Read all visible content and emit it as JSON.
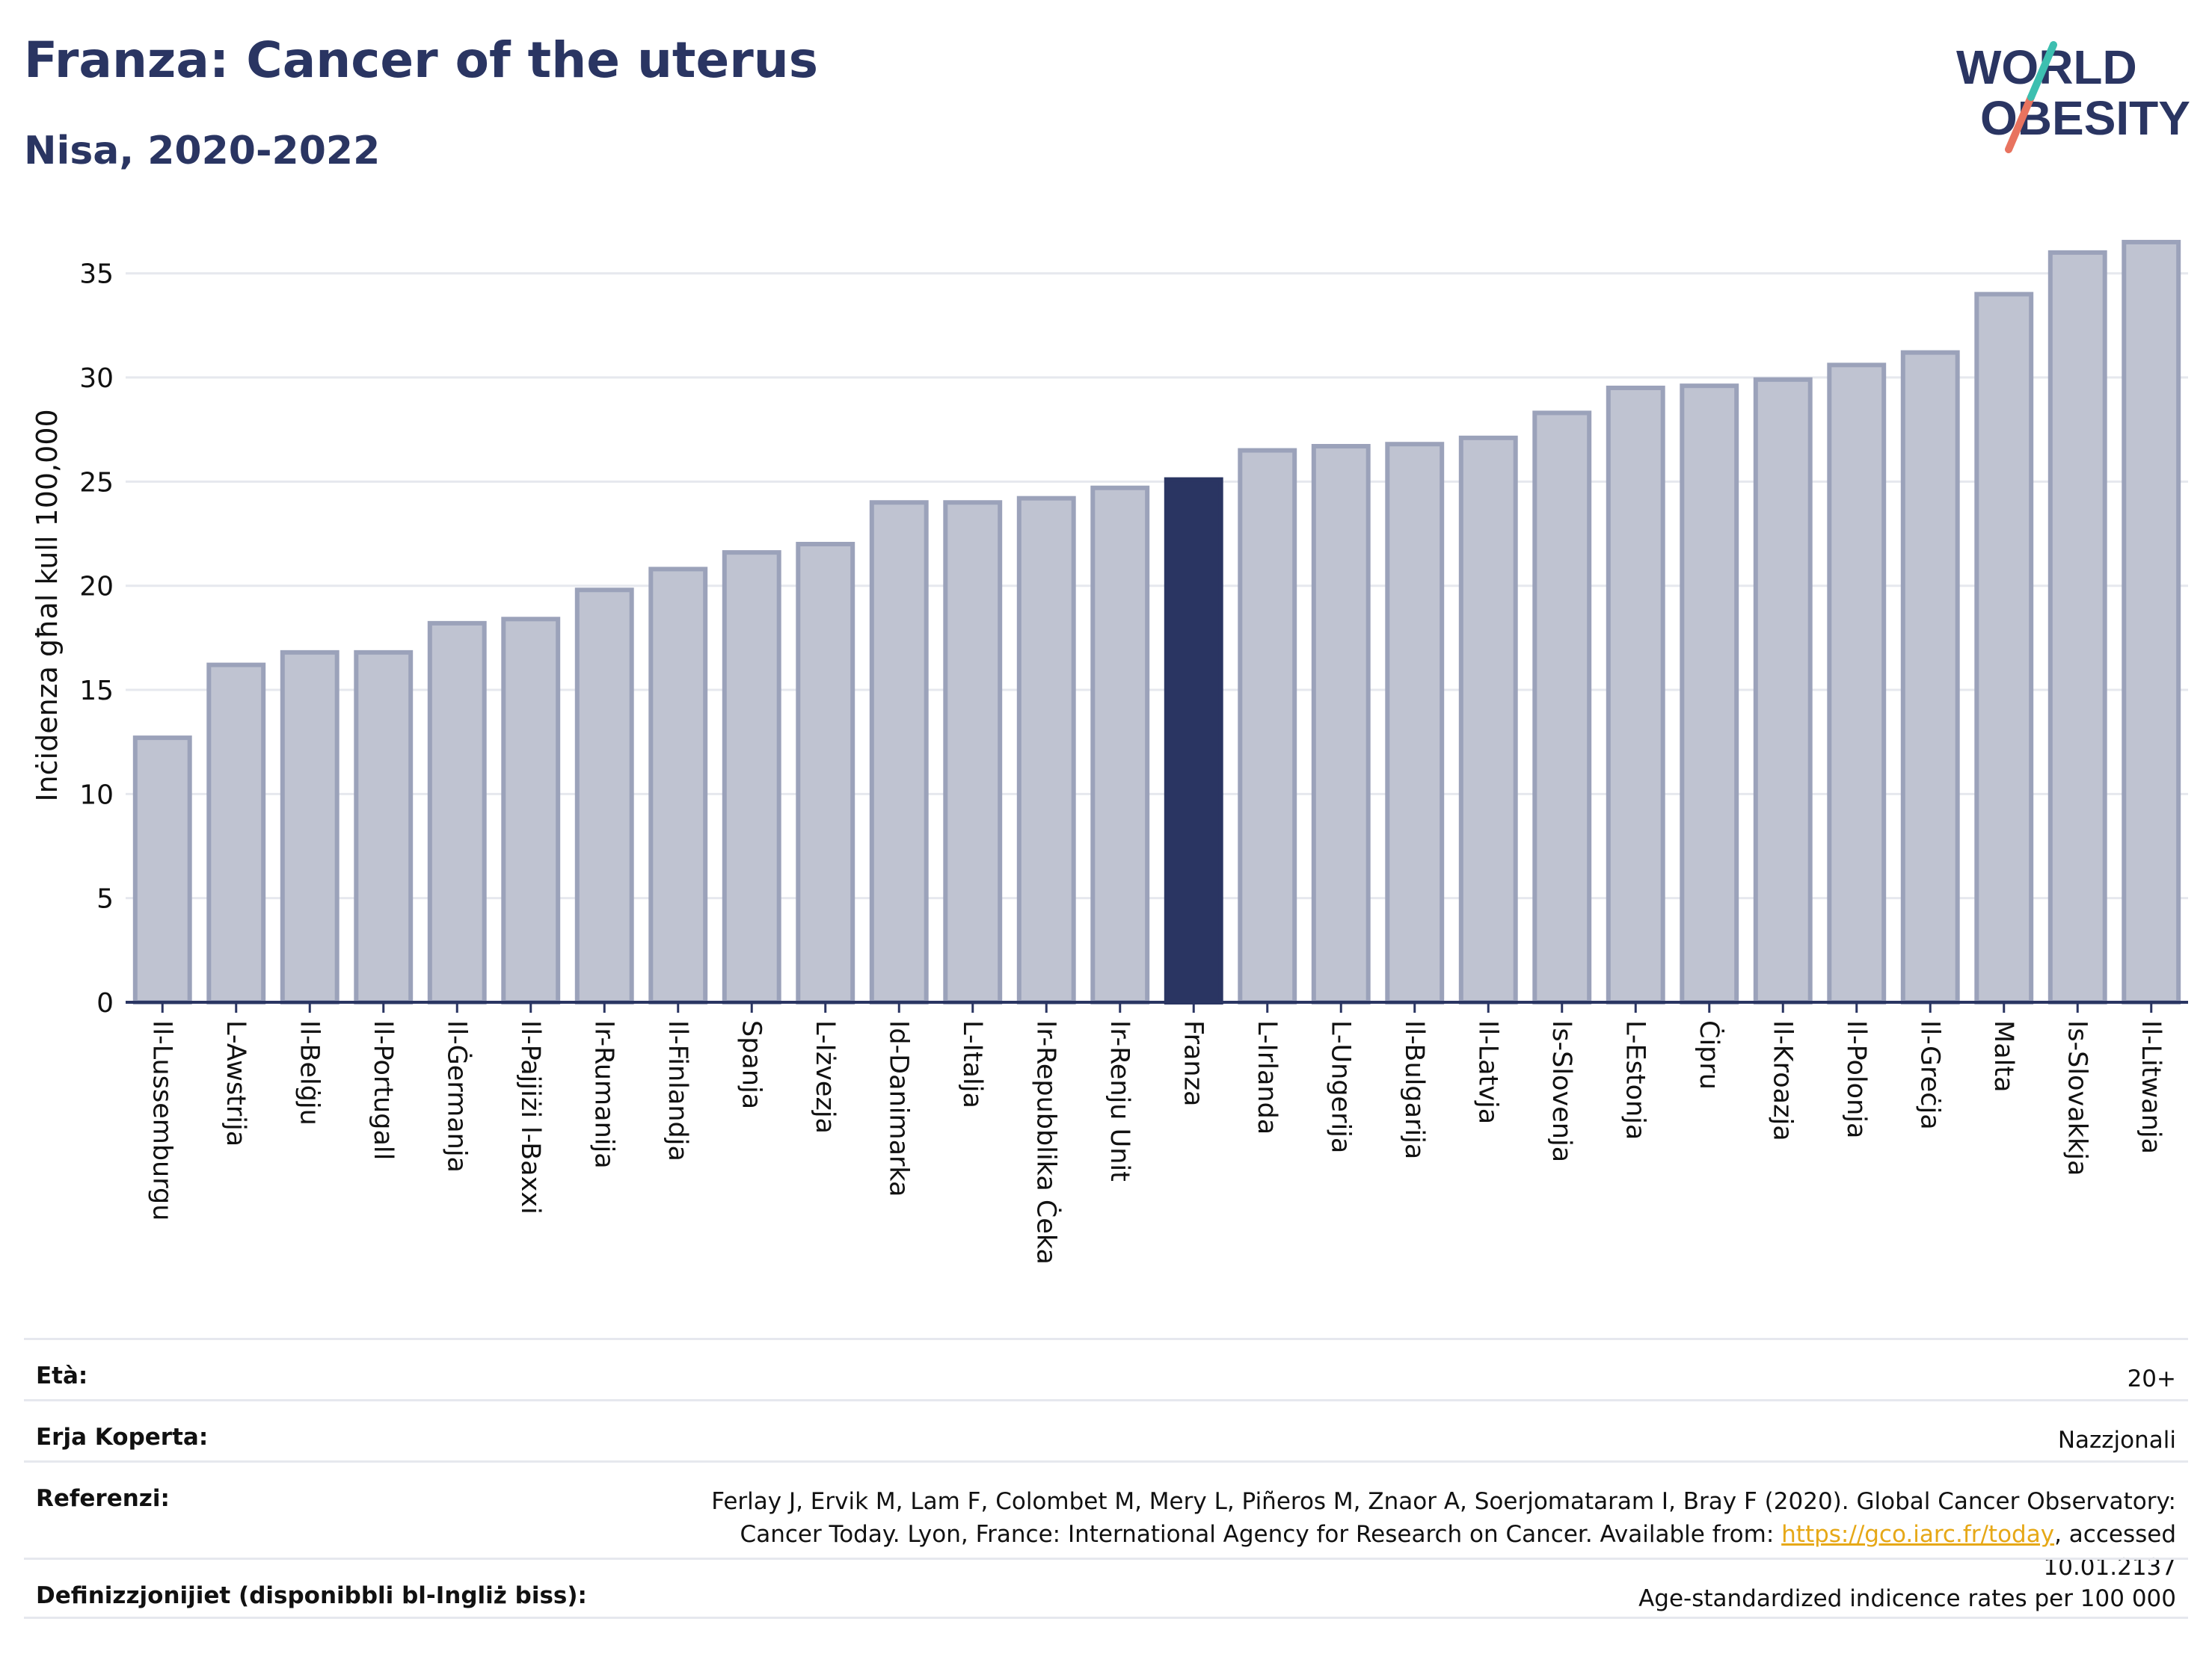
{
  "header": {
    "title": "Franza: Cancer of the uterus",
    "subtitle": "Nisa, 2020-2022"
  },
  "logo": {
    "line1": "WORLD",
    "line2": "OBESITY"
  },
  "colors": {
    "bar": "#bfc3d1",
    "bar_border": "#9ba2ba",
    "highlight": "#2a3562",
    "grid": "#e6e8ee",
    "axis": "#2a3562"
  },
  "chart_data": {
    "type": "bar",
    "ylabel": "Inċidenza għal kull 100,000",
    "ylim": [
      0,
      37
    ],
    "yticks": [
      0,
      5,
      10,
      15,
      20,
      25,
      30,
      35
    ],
    "grid": true,
    "highlight": "Franza",
    "categories": [
      "Il-Lussemburgu",
      "L-Awstrija",
      "Il-Belġju",
      "Il-Portugall",
      "Il-Ġermanja",
      "Il-Pajjiżi l-Baxxi",
      "Ir-Rumanija",
      "Il-Finlandja",
      "Spanja",
      "L-Iżvezja",
      "Id-Danimarka",
      "L-Italja",
      "Ir-Repubblika Ċeka",
      "Ir-Renju Unit",
      "Franza",
      "L-Irlanda",
      "L-Ungerija",
      "Il-Bulgarija",
      "Il-Latvja",
      "Is-Slovenja",
      "L-Estonja",
      "Ċipru",
      "Il-Kroazja",
      "Il-Polonja",
      "Il-Greċja",
      "Malta",
      "Is-Slovakkja",
      "Il-Litwanja"
    ],
    "values": [
      12.7,
      16.2,
      16.8,
      16.8,
      18.2,
      18.4,
      19.8,
      20.8,
      21.6,
      22.0,
      24.0,
      24.0,
      24.2,
      24.7,
      25.1,
      26.5,
      26.7,
      26.8,
      27.1,
      28.3,
      29.5,
      29.6,
      29.9,
      30.6,
      31.2,
      34.0,
      36.0,
      36.5
    ]
  },
  "info": {
    "age_label": "Età:",
    "age_value": "20+",
    "area_label": "Erja Koperta:",
    "area_value": "Nazzjonali",
    "ref_label": "Referenzi:",
    "ref_text_1": "Ferlay J, Ervik M, Lam F, Colombet M, Mery L, Piñeros M, Znaor A, Soerjomataram I, Bray F (2020). Global Cancer Observatory: Cancer Today. Lyon, France: International Agency for Research on Cancer. Available from: ",
    "ref_link": "https://gco.iarc.fr/today",
    "ref_text_2": ", accessed 10.01.2137",
    "def_label": "Definizzjonijiet (disponibbli bl-Ingliż biss):",
    "def_value": "Age-standardized indicence rates per 100 000"
  }
}
